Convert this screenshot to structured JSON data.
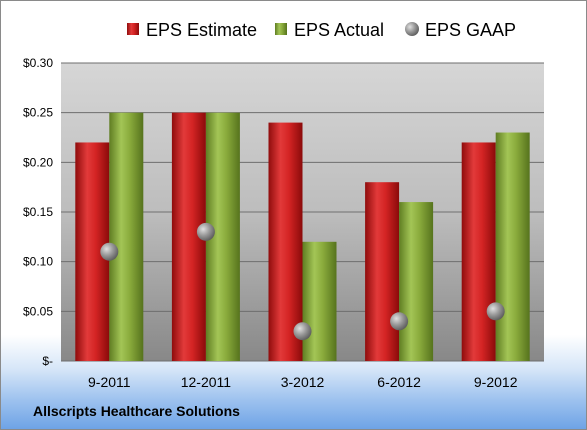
{
  "footer": {
    "company": "Allscripts Healthcare Solutions"
  },
  "colors": {
    "estimate": "#cc1f1f",
    "actual": "#8aab3c",
    "gaap": "#9a9a9a",
    "plot_background_top": "#d4d4d4",
    "plot_background_bottom": "#8a8a8a"
  },
  "chart_data": {
    "type": "bar",
    "categories": [
      "9-2011",
      "12-2011",
      "3-2012",
      "6-2012",
      "9-2012"
    ],
    "series": [
      {
        "name": "EPS Estimate",
        "kind": "bar",
        "values": [
          0.22,
          0.25,
          0.24,
          0.18,
          0.22
        ]
      },
      {
        "name": "EPS Actual",
        "kind": "bar",
        "values": [
          0.25,
          0.25,
          0.12,
          0.16,
          0.23
        ]
      },
      {
        "name": "EPS GAAP",
        "kind": "scatter",
        "values": [
          0.11,
          0.13,
          0.03,
          0.04,
          0.05
        ]
      }
    ],
    "y_ticks": [
      {
        "value": 0.3,
        "label": "$0.30"
      },
      {
        "value": 0.25,
        "label": "$0.25"
      },
      {
        "value": 0.2,
        "label": "$0.20"
      },
      {
        "value": 0.15,
        "label": "$0.15"
      },
      {
        "value": 0.1,
        "label": "$0.10"
      },
      {
        "value": 0.05,
        "label": "$0.05"
      },
      {
        "value": 0.0,
        "label": "$-"
      }
    ],
    "ylim": [
      0,
      0.3
    ],
    "grid": true,
    "legend_position": "top"
  }
}
